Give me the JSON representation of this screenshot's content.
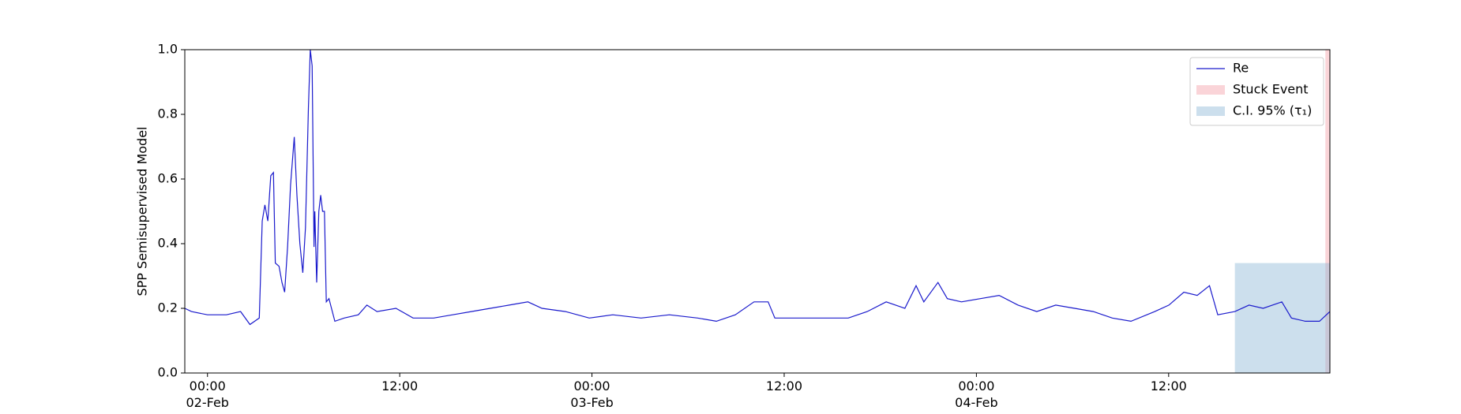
{
  "chart_data": {
    "type": "line",
    "ylabel": "SPP Semisupervised Model",
    "xlim": [
      "1900-02-01T22:35",
      "1900-02-04T22:04"
    ],
    "ylim": [
      0,
      1
    ],
    "yticks": [
      {
        "value": 0,
        "label": "0.0"
      },
      0.2,
      0.4,
      0.6,
      0.8,
      {
        "value": 1,
        "label": "1.0"
      }
    ],
    "xticks": [
      {
        "value": "1900-02-02T00:00",
        "label": "00:00\n02-Feb\n1900"
      },
      {
        "value": "1900-02-02T12:00",
        "label": "12:00"
      },
      {
        "value": "1900-02-03T00:00",
        "label": "00:00\n03-Feb"
      },
      {
        "value": "1900-02-03T12:00",
        "label": "12:00"
      },
      {
        "value": "1900-02-04T00:00",
        "label": "00:00\n04-Feb"
      },
      {
        "value": "1900-02-04T12:00",
        "label": "12:00"
      }
    ],
    "legend": "upper right",
    "spans": [
      {
        "name": "Stuck Event",
        "color": "#f4a0a8",
        "start": "1900-02-04T21:47",
        "end": "1900-02-04T22:04"
      },
      {
        "name": "C.I. 95% (τ₁)",
        "color": "#8fb8d8",
        "start": "1900-02-04T16:08",
        "end": "1900-02-04T22:04",
        "ylim": [
          0,
          0.34
        ]
      }
    ],
    "x": [
      "1900-02-01T22:35",
      "1900-02-01T23:00",
      "1900-02-02T00:00",
      "1900-02-02T01:11",
      "1900-02-02T02:04",
      "1900-02-02T02:39",
      "1900-02-02T03:14",
      "1900-02-02T03:25",
      "1900-02-02T03:35",
      "1900-02-02T03:46",
      "1900-02-02T03:57",
      "1900-02-02T04:07",
      "1900-02-02T04:14",
      "1900-02-02T04:28",
      "1900-02-02T04:39",
      "1900-02-02T04:49",
      "1900-02-02T05:00",
      "1900-02-02T05:11",
      "1900-02-02T05:25",
      "1900-02-02T05:35",
      "1900-02-02T05:46",
      "1900-02-02T05:57",
      "1900-02-02T06:07",
      "1900-02-02T06:18",
      "1900-02-02T06:25",
      "1900-02-02T06:32",
      "1900-02-02T06:39",
      "1900-02-02T06:42",
      "1900-02-02T06:49",
      "1900-02-02T06:57",
      "1900-02-02T07:04",
      "1900-02-02T07:11",
      "1900-02-02T07:18",
      "1900-02-02T07:25",
      "1900-02-02T07:35",
      "1900-02-02T07:57",
      "1900-02-02T08:32",
      "1900-02-02T09:25",
      "1900-02-02T09:57",
      "1900-02-02T10:35",
      "1900-02-02T11:46",
      "1900-02-02T12:50",
      "1900-02-02T14:07",
      "1900-02-02T15:18",
      "1900-02-02T16:28",
      "1900-02-02T17:39",
      "1900-02-02T18:50",
      "1900-02-02T20:00",
      "1900-02-02T20:53",
      "1900-02-02T22:21",
      "1900-02-02T23:50",
      "1900-02-03T01:18",
      "1900-02-03T03:04",
      "1900-02-03T04:50",
      "1900-02-03T06:36",
      "1900-02-03T07:46",
      "1900-02-03T08:57",
      "1900-02-03T10:07",
      "1900-02-03T11:00",
      "1900-02-03T11:25",
      "1900-02-03T12:29",
      "1900-02-03T14:15",
      "1900-02-03T16:00",
      "1900-02-03T17:11",
      "1900-02-03T18:22",
      "1900-02-03T19:32",
      "1900-02-03T20:14",
      "1900-02-03T20:43",
      "1900-02-03T21:36",
      "1900-02-03T22:11",
      "1900-02-03T23:04",
      "1900-02-04T00:15",
      "1900-02-04T01:25",
      "1900-02-04T02:36",
      "1900-02-04T03:46",
      "1900-02-04T04:57",
      "1900-02-04T06:08",
      "1900-02-04T07:18",
      "1900-02-04T08:29",
      "1900-02-04T09:39",
      "1900-02-04T11:08",
      "1900-02-04T12:01",
      "1900-02-04T12:57",
      "1900-02-04T13:47",
      "1900-02-04T14:33",
      "1900-02-04T15:04",
      "1900-02-04T16:08",
      "1900-02-04T17:01",
      "1900-02-04T17:54",
      "1900-02-04T19:04",
      "1900-02-04T19:40",
      "1900-02-04T20:32",
      "1900-02-04T21:25",
      "1900-02-04T22:04"
    ],
    "series": [
      {
        "name": "Re",
        "color": "#1a1acc",
        "values": [
          0.2,
          0.19,
          0.18,
          0.18,
          0.19,
          0.15,
          0.17,
          0.47,
          0.52,
          0.47,
          0.61,
          0.62,
          0.34,
          0.33,
          0.28,
          0.25,
          0.39,
          0.58,
          0.73,
          0.55,
          0.4,
          0.31,
          0.45,
          0.82,
          1.0,
          0.95,
          0.39,
          0.5,
          0.28,
          0.5,
          0.55,
          0.5,
          0.5,
          0.22,
          0.23,
          0.16,
          0.17,
          0.18,
          0.21,
          0.19,
          0.2,
          0.17,
          0.17,
          0.18,
          0.19,
          0.2,
          0.21,
          0.22,
          0.2,
          0.19,
          0.17,
          0.18,
          0.17,
          0.18,
          0.17,
          0.16,
          0.18,
          0.22,
          0.22,
          0.17,
          0.17,
          0.17,
          0.17,
          0.19,
          0.22,
          0.2,
          0.27,
          0.22,
          0.28,
          0.23,
          0.22,
          0.23,
          0.24,
          0.21,
          0.19,
          0.21,
          0.2,
          0.19,
          0.17,
          0.16,
          0.19,
          0.21,
          0.25,
          0.24,
          0.27,
          0.18,
          0.19,
          0.21,
          0.2,
          0.22,
          0.17,
          0.16,
          0.16,
          0.19
        ]
      }
    ]
  }
}
